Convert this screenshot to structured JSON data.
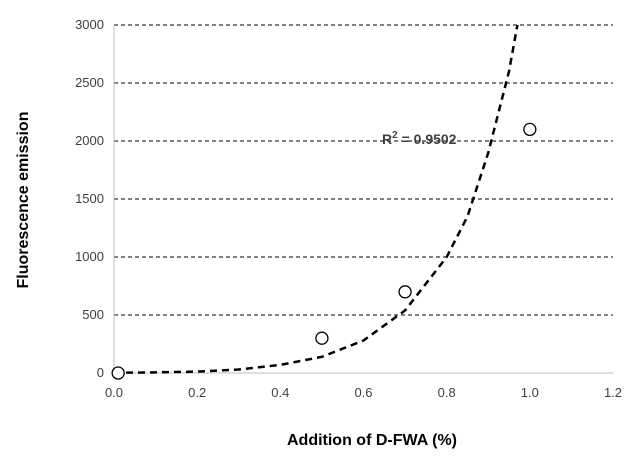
{
  "chart_data": {
    "type": "scatter",
    "title": "",
    "xlabel": "Addition of D-FWA (%)",
    "ylabel": "Fluorescence emission",
    "xlim": [
      0,
      1.2
    ],
    "ylim": [
      0,
      3000
    ],
    "xticks": [
      "0.0",
      "0.2",
      "0.4",
      "0.6",
      "0.8",
      "1.0",
      "1.2"
    ],
    "yticks": [
      "0",
      "500",
      "1000",
      "1500",
      "2000",
      "2500",
      "3000"
    ],
    "grid": "horizontal-dashed",
    "legend": "none",
    "series": [
      {
        "marker": "open-circle",
        "x": [
          0.01,
          0.5,
          0.7,
          1.0
        ],
        "y": [
          0,
          300,
          700,
          2100
        ]
      }
    ],
    "trendline": {
      "style": "dashed",
      "type": "exponential",
      "x": [
        0.0,
        0.1,
        0.2,
        0.3,
        0.4,
        0.5,
        0.6,
        0.7,
        0.8,
        0.85,
        0.9,
        0.95,
        0.97
      ],
      "y": [
        2,
        5,
        12,
        30,
        70,
        140,
        280,
        540,
        1000,
        1350,
        1900,
        2600,
        3000
      ]
    },
    "annotation": {
      "prefix": "R",
      "superscript": "2",
      "suffix": " = 0.9502"
    },
    "colors": {
      "axis": "#bfbfbf",
      "grid": "#000000",
      "marker": "#000000",
      "trendline": "#000000"
    }
  }
}
